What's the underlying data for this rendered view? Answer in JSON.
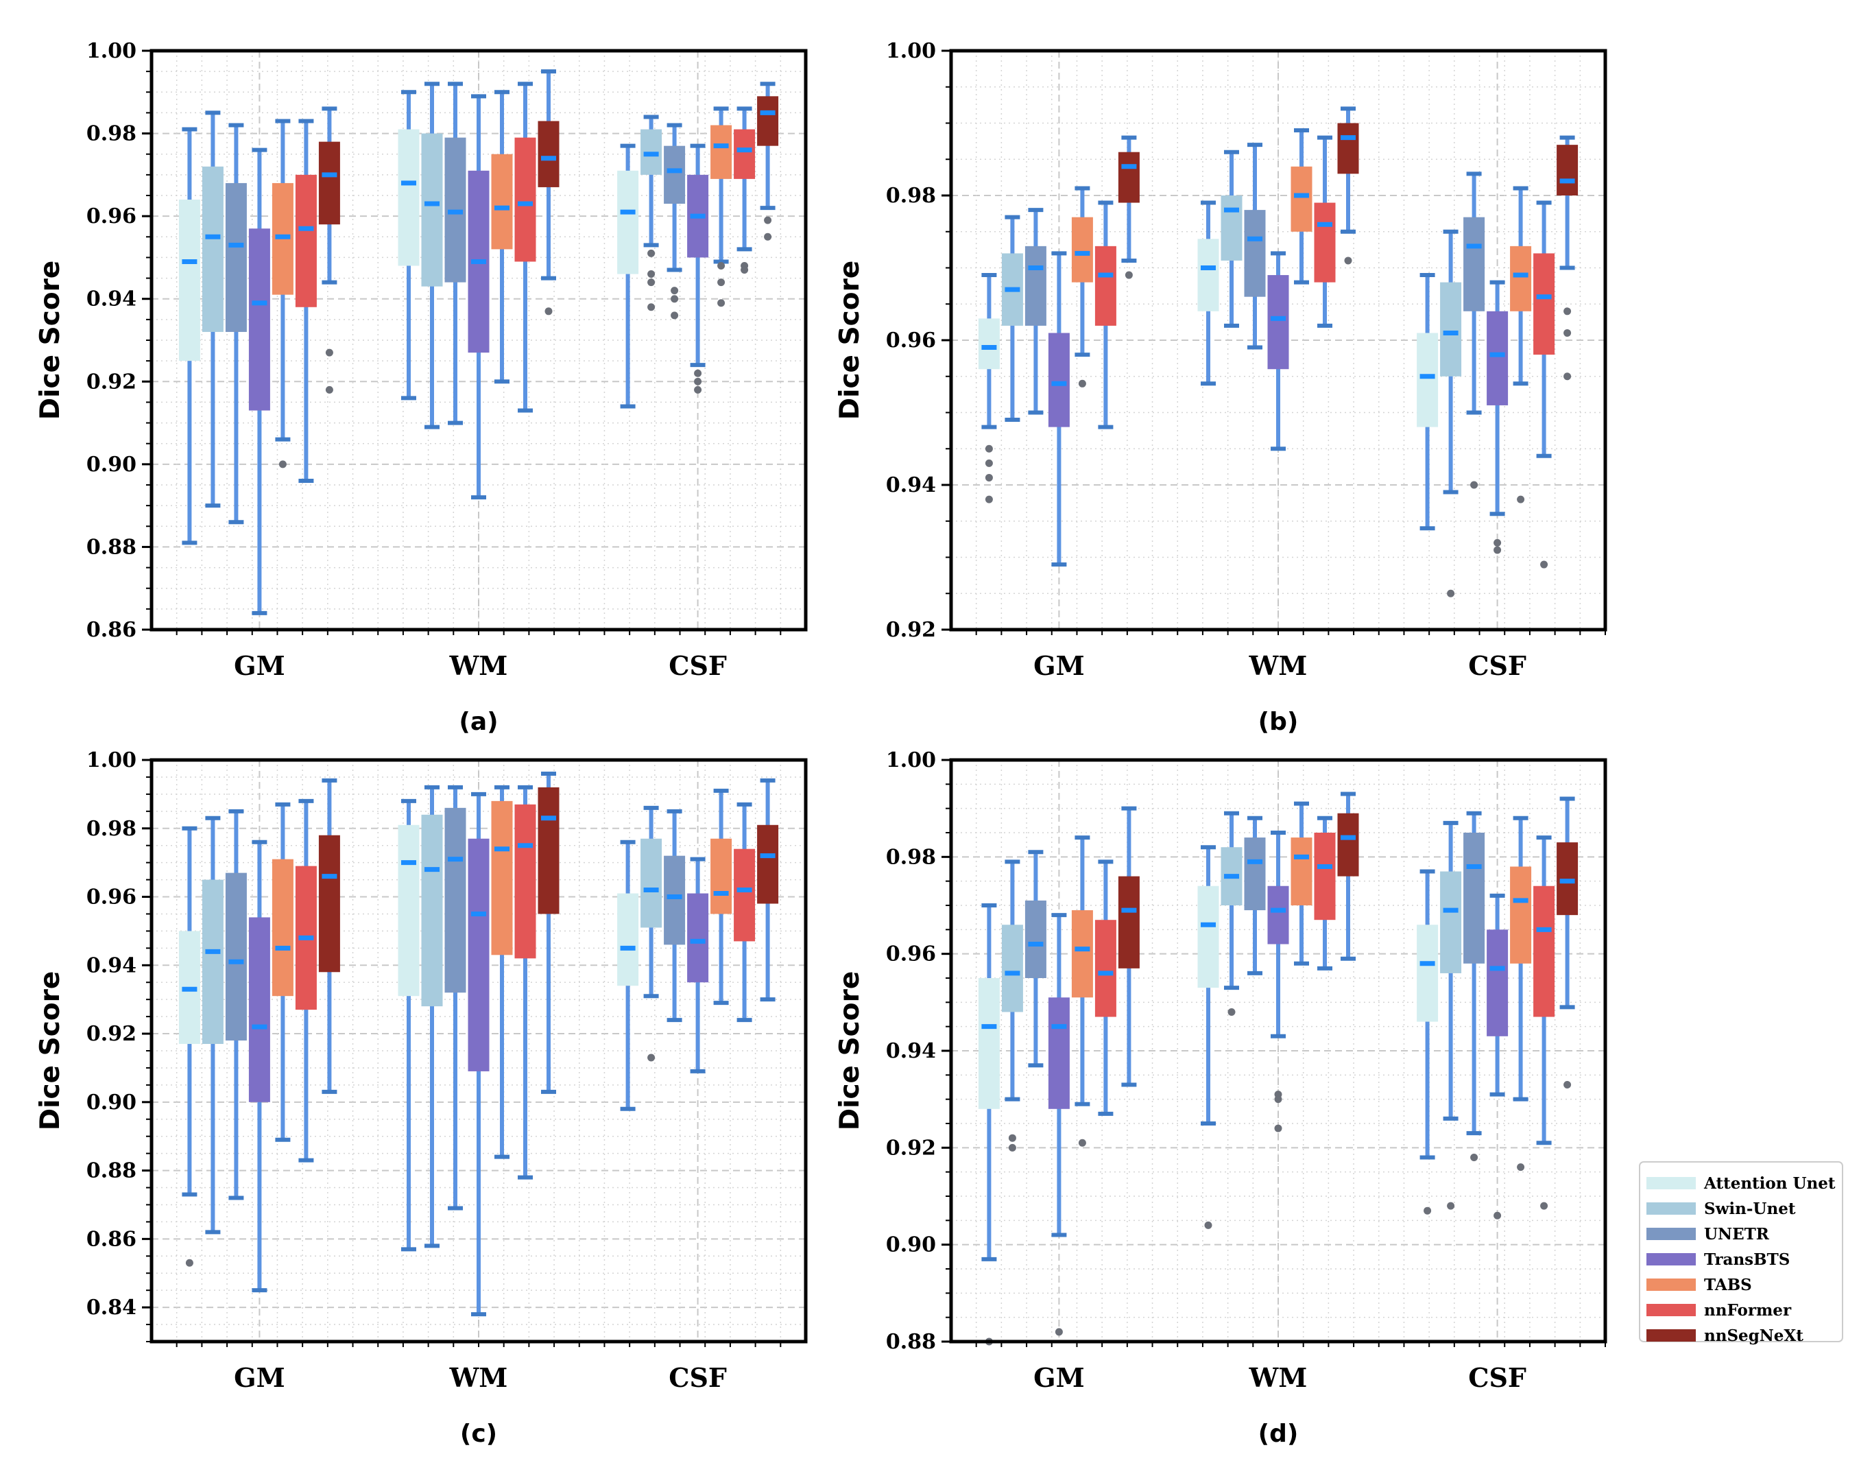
{
  "chart_data": [
    {
      "panel": "(a)",
      "type": "boxplot",
      "ylabel": "Dice Score",
      "ylim": [
        0.86,
        1.0
      ],
      "yticks": [
        "0.86",
        "0.88",
        "0.90",
        "0.92",
        "0.94",
        "0.96",
        "0.98",
        "1.00"
      ],
      "categories": [
        "GM",
        "WM",
        "CSF"
      ],
      "series": [
        {
          "name": "Attention Unet",
          "boxes": [
            [
              0.881,
              0.925,
              0.949,
              0.964,
              0.981
            ],
            [
              0.916,
              0.948,
              0.968,
              0.981,
              0.99
            ],
            [
              0.914,
              0.946,
              0.961,
              0.971,
              0.977
            ]
          ],
          "outliers": [
            [],
            [],
            []
          ]
        },
        {
          "name": "Swin-Unet",
          "boxes": [
            [
              0.89,
              0.932,
              0.955,
              0.972,
              0.985
            ],
            [
              0.909,
              0.943,
              0.963,
              0.98,
              0.992
            ],
            [
              0.953,
              0.97,
              0.975,
              0.981,
              0.984
            ]
          ],
          "outliers": [
            [],
            [],
            [
              0.951,
              0.946,
              0.944,
              0.938
            ]
          ]
        },
        {
          "name": "UNETR",
          "boxes": [
            [
              0.886,
              0.932,
              0.953,
              0.968,
              0.982
            ],
            [
              0.91,
              0.944,
              0.961,
              0.979,
              0.992
            ],
            [
              0.947,
              0.963,
              0.971,
              0.977,
              0.982
            ]
          ],
          "outliers": [
            [],
            [],
            [
              0.942,
              0.94,
              0.936
            ]
          ]
        },
        {
          "name": "TransBTS",
          "boxes": [
            [
              0.864,
              0.913,
              0.939,
              0.957,
              0.976
            ],
            [
              0.892,
              0.927,
              0.949,
              0.971,
              0.989
            ],
            [
              0.924,
              0.95,
              0.96,
              0.97,
              0.977
            ]
          ],
          "outliers": [
            [],
            [],
            [
              0.922,
              0.92,
              0.918
            ]
          ]
        },
        {
          "name": "TABS",
          "boxes": [
            [
              0.906,
              0.941,
              0.955,
              0.968,
              0.983
            ],
            [
              0.92,
              0.952,
              0.962,
              0.975,
              0.99
            ],
            [
              0.949,
              0.969,
              0.977,
              0.982,
              0.986
            ]
          ],
          "outliers": [
            [
              0.9
            ],
            [],
            [
              0.948,
              0.944,
              0.939
            ]
          ]
        },
        {
          "name": "nnFormer",
          "boxes": [
            [
              0.896,
              0.938,
              0.957,
              0.97,
              0.983
            ],
            [
              0.913,
              0.949,
              0.963,
              0.979,
              0.992
            ],
            [
              0.952,
              0.969,
              0.976,
              0.981,
              0.986
            ]
          ],
          "outliers": [
            [],
            [],
            [
              0.948,
              0.947
            ]
          ]
        },
        {
          "name": "nnSegNeXt",
          "boxes": [
            [
              0.944,
              0.958,
              0.97,
              0.978,
              0.986
            ],
            [
              0.945,
              0.967,
              0.974,
              0.983,
              0.995
            ],
            [
              0.962,
              0.977,
              0.985,
              0.989,
              0.992
            ]
          ],
          "outliers": [
            [
              0.927,
              0.918
            ],
            [
              0.937
            ],
            [
              0.959,
              0.955
            ]
          ]
        }
      ]
    },
    {
      "panel": "(b)",
      "type": "boxplot",
      "ylabel": "Dice Score",
      "ylim": [
        0.92,
        1.0
      ],
      "yticks": [
        "0.92",
        "0.94",
        "0.96",
        "0.98",
        "1.00"
      ],
      "categories": [
        "GM",
        "WM",
        "CSF"
      ],
      "series": [
        {
          "name": "Attention Unet",
          "boxes": [
            [
              0.948,
              0.956,
              0.959,
              0.963,
              0.969
            ],
            [
              0.954,
              0.964,
              0.97,
              0.974,
              0.979
            ],
            [
              0.934,
              0.948,
              0.955,
              0.961,
              0.969
            ]
          ],
          "outliers": [
            [
              0.945,
              0.943,
              0.941,
              0.938
            ],
            [],
            []
          ]
        },
        {
          "name": "Swin-Unet",
          "boxes": [
            [
              0.949,
              0.962,
              0.967,
              0.972,
              0.977
            ],
            [
              0.962,
              0.971,
              0.978,
              0.98,
              0.986
            ],
            [
              0.939,
              0.955,
              0.961,
              0.968,
              0.975
            ]
          ],
          "outliers": [
            [],
            [],
            [
              0.925
            ]
          ]
        },
        {
          "name": "UNETR",
          "boxes": [
            [
              0.95,
              0.962,
              0.97,
              0.973,
              0.978
            ],
            [
              0.959,
              0.966,
              0.974,
              0.978,
              0.987
            ],
            [
              0.95,
              0.964,
              0.973,
              0.977,
              0.983
            ]
          ],
          "outliers": [
            [],
            [],
            [
              0.94
            ]
          ]
        },
        {
          "name": "TransBTS",
          "boxes": [
            [
              0.929,
              0.948,
              0.954,
              0.961,
              0.972
            ],
            [
              0.945,
              0.956,
              0.963,
              0.969,
              0.972
            ],
            [
              0.936,
              0.951,
              0.958,
              0.964,
              0.968
            ]
          ],
          "outliers": [
            [],
            [],
            [
              0.932,
              0.931
            ]
          ]
        },
        {
          "name": "TABS",
          "boxes": [
            [
              0.958,
              0.968,
              0.972,
              0.977,
              0.981
            ],
            [
              0.968,
              0.975,
              0.98,
              0.984,
              0.989
            ],
            [
              0.954,
              0.964,
              0.969,
              0.973,
              0.981
            ]
          ],
          "outliers": [
            [
              0.954
            ],
            [],
            [
              0.938
            ]
          ]
        },
        {
          "name": "nnFormer",
          "boxes": [
            [
              0.948,
              0.962,
              0.969,
              0.973,
              0.979
            ],
            [
              0.962,
              0.968,
              0.976,
              0.979,
              0.988
            ],
            [
              0.944,
              0.958,
              0.966,
              0.972,
              0.979
            ]
          ],
          "outliers": [
            [],
            [],
            [
              0.929
            ]
          ]
        },
        {
          "name": "nnSegNeXt",
          "boxes": [
            [
              0.971,
              0.979,
              0.984,
              0.986,
              0.988
            ],
            [
              0.975,
              0.983,
              0.988,
              0.99,
              0.992
            ],
            [
              0.97,
              0.98,
              0.982,
              0.987,
              0.988
            ]
          ],
          "outliers": [
            [
              0.969
            ],
            [
              0.971
            ],
            [
              0.964,
              0.961,
              0.955
            ]
          ]
        }
      ]
    },
    {
      "panel": "(c)",
      "type": "boxplot",
      "ylabel": "Dice Score",
      "ylim": [
        0.83,
        1.0
      ],
      "yticks": [
        "0.84",
        "0.86",
        "0.88",
        "0.90",
        "0.92",
        "0.94",
        "0.96",
        "0.98",
        "1.00"
      ],
      "categories": [
        "GM",
        "WM",
        "CSF"
      ],
      "series": [
        {
          "name": "Attention Unet",
          "boxes": [
            [
              0.873,
              0.917,
              0.933,
              0.95,
              0.98
            ],
            [
              0.857,
              0.931,
              0.97,
              0.981,
              0.988
            ],
            [
              0.898,
              0.934,
              0.945,
              0.961,
              0.976
            ]
          ],
          "outliers": [
            [
              0.853
            ],
            [],
            []
          ]
        },
        {
          "name": "Swin-Unet",
          "boxes": [
            [
              0.862,
              0.917,
              0.944,
              0.965,
              0.983
            ],
            [
              0.858,
              0.928,
              0.968,
              0.984,
              0.992
            ],
            [
              0.931,
              0.951,
              0.962,
              0.977,
              0.986
            ]
          ],
          "outliers": [
            [],
            [],
            [
              0.913
            ]
          ]
        },
        {
          "name": "UNETR",
          "boxes": [
            [
              0.872,
              0.918,
              0.941,
              0.967,
              0.985
            ],
            [
              0.869,
              0.932,
              0.971,
              0.986,
              0.992
            ],
            [
              0.924,
              0.946,
              0.96,
              0.972,
              0.985
            ]
          ],
          "outliers": [
            [],
            [],
            []
          ]
        },
        {
          "name": "TransBTS",
          "boxes": [
            [
              0.845,
              0.9,
              0.922,
              0.954,
              0.976
            ],
            [
              0.838,
              0.909,
              0.955,
              0.977,
              0.99
            ],
            [
              0.909,
              0.935,
              0.947,
              0.961,
              0.971
            ]
          ],
          "outliers": [
            [],
            [],
            []
          ]
        },
        {
          "name": "TABS",
          "boxes": [
            [
              0.889,
              0.931,
              0.945,
              0.971,
              0.987
            ],
            [
              0.884,
              0.943,
              0.974,
              0.988,
              0.992
            ],
            [
              0.929,
              0.955,
              0.961,
              0.977,
              0.991
            ]
          ],
          "outliers": [
            [],
            [],
            []
          ]
        },
        {
          "name": "nnFormer",
          "boxes": [
            [
              0.883,
              0.927,
              0.948,
              0.969,
              0.988
            ],
            [
              0.878,
              0.942,
              0.975,
              0.987,
              0.992
            ],
            [
              0.924,
              0.947,
              0.962,
              0.974,
              0.987
            ]
          ],
          "outliers": [
            [],
            [],
            []
          ]
        },
        {
          "name": "nnSegNeXt",
          "boxes": [
            [
              0.903,
              0.938,
              0.966,
              0.978,
              0.994
            ],
            [
              0.903,
              0.955,
              0.983,
              0.992,
              0.996
            ],
            [
              0.93,
              0.958,
              0.972,
              0.981,
              0.994
            ]
          ],
          "outliers": [
            [],
            [],
            []
          ]
        }
      ]
    },
    {
      "panel": "(d)",
      "type": "boxplot",
      "ylabel": "Dice Score",
      "ylim": [
        0.88,
        1.0
      ],
      "yticks": [
        "0.88",
        "0.90",
        "0.92",
        "0.94",
        "0.96",
        "0.98",
        "1.00"
      ],
      "categories": [
        "GM",
        "WM",
        "CSF"
      ],
      "series": [
        {
          "name": "Attention Unet",
          "boxes": [
            [
              0.897,
              0.928,
              0.945,
              0.955,
              0.97
            ],
            [
              0.925,
              0.953,
              0.966,
              0.974,
              0.982
            ],
            [
              0.918,
              0.946,
              0.958,
              0.966,
              0.977
            ]
          ],
          "outliers": [
            [
              0.88
            ],
            [
              0.904
            ],
            [
              0.907
            ]
          ]
        },
        {
          "name": "Swin-Unet",
          "boxes": [
            [
              0.93,
              0.948,
              0.956,
              0.966,
              0.979
            ],
            [
              0.953,
              0.97,
              0.976,
              0.982,
              0.989
            ],
            [
              0.926,
              0.956,
              0.969,
              0.977,
              0.987
            ]
          ],
          "outliers": [
            [
              0.922,
              0.92
            ],
            [
              0.948
            ],
            [
              0.908
            ]
          ]
        },
        {
          "name": "UNETR",
          "boxes": [
            [
              0.937,
              0.955,
              0.962,
              0.971,
              0.981
            ],
            [
              0.956,
              0.969,
              0.979,
              0.984,
              0.988
            ],
            [
              0.923,
              0.958,
              0.978,
              0.985,
              0.989
            ]
          ],
          "outliers": [
            [],
            [],
            [
              0.918
            ]
          ]
        },
        {
          "name": "TransBTS",
          "boxes": [
            [
              0.902,
              0.928,
              0.945,
              0.951,
              0.968
            ],
            [
              0.943,
              0.962,
              0.969,
              0.974,
              0.985
            ],
            [
              0.931,
              0.943,
              0.957,
              0.965,
              0.972
            ]
          ],
          "outliers": [
            [
              0.882
            ],
            [
              0.931,
              0.93,
              0.924
            ],
            [
              0.906
            ]
          ]
        },
        {
          "name": "TABS",
          "boxes": [
            [
              0.929,
              0.951,
              0.961,
              0.969,
              0.984
            ],
            [
              0.958,
              0.97,
              0.98,
              0.984,
              0.991
            ],
            [
              0.93,
              0.958,
              0.971,
              0.978,
              0.988
            ]
          ],
          "outliers": [
            [
              0.921
            ],
            [],
            [
              0.916
            ]
          ]
        },
        {
          "name": "nnFormer",
          "boxes": [
            [
              0.927,
              0.947,
              0.956,
              0.967,
              0.979
            ],
            [
              0.957,
              0.967,
              0.978,
              0.985,
              0.988
            ],
            [
              0.921,
              0.947,
              0.965,
              0.974,
              0.984
            ]
          ],
          "outliers": [
            [],
            [],
            [
              0.908
            ]
          ]
        },
        {
          "name": "nnSegNeXt",
          "boxes": [
            [
              0.933,
              0.957,
              0.969,
              0.976,
              0.99
            ],
            [
              0.959,
              0.976,
              0.984,
              0.989,
              0.993
            ],
            [
              0.949,
              0.968,
              0.975,
              0.983,
              0.992
            ]
          ],
          "outliers": [
            [],
            [],
            [
              0.933
            ]
          ]
        }
      ]
    }
  ],
  "legend": {
    "position": "bottom-right",
    "entries": [
      "Attention Unet",
      "Swin-Unet",
      "UNETR",
      "TransBTS",
      "TABS",
      "nnFormer",
      "nnSegNeXt"
    ],
    "colors": [
      "#d4eef0",
      "#a7cbdd",
      "#7b97c2",
      "#7d6fc6",
      "#ef8e64",
      "#e35656",
      "#8e2a22"
    ]
  },
  "style": {
    "whisker_color": "#5b93e2",
    "cap_color": "#3f7bc6",
    "median_color": "#1c8cff",
    "outlier_color": "#6b6f78"
  }
}
